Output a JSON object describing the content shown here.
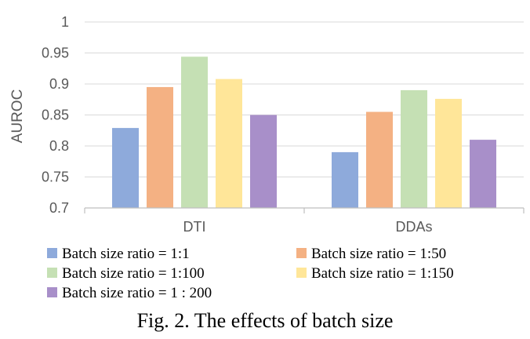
{
  "chart_data": {
    "type": "bar",
    "categories": [
      "DTI",
      "DDAs"
    ],
    "ylabel": "AUROC",
    "xlabel": "",
    "ylim": [
      0.7,
      1
    ],
    "yticks": [
      0.7,
      0.75,
      0.8,
      0.85,
      0.9,
      0.95,
      1
    ],
    "ytick_labels": [
      "0.7",
      "0.75",
      "0.8",
      "0.85",
      "0.9",
      "0.95",
      "1"
    ],
    "grid": true,
    "legend_position": "bottom",
    "series": [
      {
        "name": "Batch size ratio = 1:1",
        "color": "#8eaadb",
        "values": [
          0.829,
          0.79
        ]
      },
      {
        "name": "Batch size ratio = 1:50",
        "color": "#f4b183",
        "values": [
          0.895,
          0.855
        ]
      },
      {
        "name": "Batch size ratio = 1:100",
        "color": "#c5e0b4",
        "values": [
          0.944,
          0.89
        ]
      },
      {
        "name": "Batch size ratio = 1:150",
        "color": "#ffe699",
        "values": [
          0.908,
          0.876
        ]
      },
      {
        "name": "Batch size ratio = 1 : 200",
        "color": "#a88fc9",
        "values": [
          0.85,
          0.81
        ]
      }
    ]
  },
  "caption": "Fig. 2. The effects of batch size"
}
